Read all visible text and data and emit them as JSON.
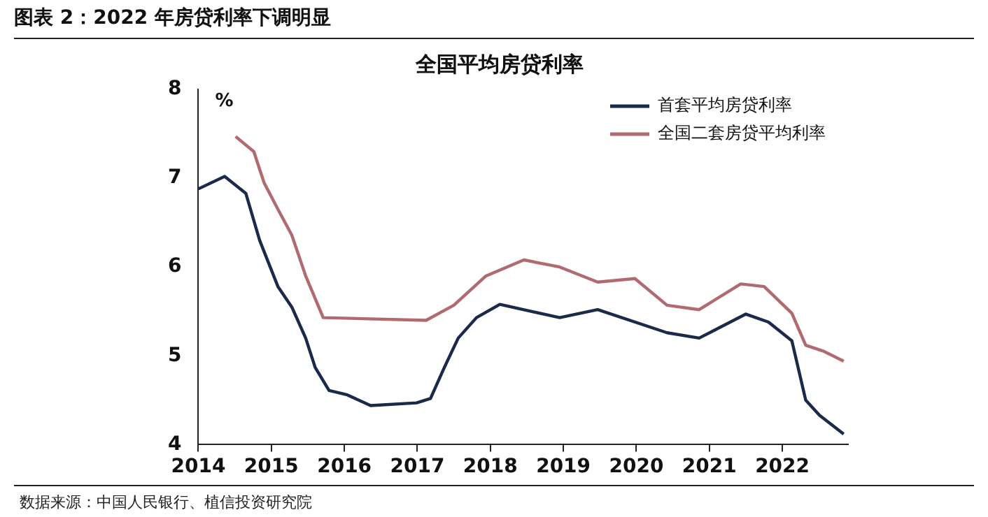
{
  "chart_data": {
    "type": "line",
    "title": "图表 2：2022 年房贷利率下调明显",
    "subtitle": "全国平均房贷利率",
    "ylabel": "%",
    "annotations": [
      "数据来源：中国人民银行、植信投资研究院"
    ],
    "xlim": [
      2014,
      2022.9
    ],
    "xticks": [
      2014,
      2015,
      2016,
      2017,
      2018,
      2019,
      2020,
      2021,
      2022
    ],
    "ylim": [
      4,
      8
    ],
    "yticks": [
      4,
      5,
      6,
      7,
      8
    ],
    "grid": false,
    "legend": "top right",
    "marker": "none",
    "line_style": "solid",
    "series": [
      {
        "name": "首套平均房贷利率",
        "color": "#1b2a4a",
        "x": [
          2014.0,
          2014.36,
          2014.65,
          2014.84,
          2015.09,
          2015.28,
          2015.47,
          2015.6,
          2015.79,
          2016.04,
          2016.36,
          2016.99,
          2017.18,
          2017.37,
          2017.56,
          2017.81,
          2018.13,
          2018.95,
          2019.47,
          2020.42,
          2020.86,
          2021.5,
          2021.81,
          2022.13,
          2022.32,
          2022.51,
          2022.84
        ],
        "values": [
          6.88,
          7.02,
          6.83,
          6.3,
          5.78,
          5.55,
          5.2,
          4.87,
          4.61,
          4.56,
          4.44,
          4.47,
          4.52,
          4.87,
          5.2,
          5.43,
          5.58,
          5.43,
          5.52,
          5.26,
          5.2,
          5.47,
          5.38,
          5.17,
          4.5,
          4.33,
          4.12
        ]
      },
      {
        "name": "全国二套房贷平均利率",
        "color": "#b06a70",
        "x": [
          2014.51,
          2014.76,
          2014.9,
          2015.09,
          2015.28,
          2015.47,
          2015.71,
          2017.12,
          2017.5,
          2017.94,
          2018.46,
          2018.95,
          2019.47,
          2019.98,
          2020.42,
          2020.86,
          2021.43,
          2021.75,
          2022.13,
          2022.32,
          2022.57,
          2022.84
        ],
        "values": [
          7.47,
          7.3,
          6.95,
          6.65,
          6.36,
          5.9,
          5.43,
          5.4,
          5.57,
          5.9,
          6.08,
          6.0,
          5.83,
          5.87,
          5.57,
          5.52,
          5.81,
          5.78,
          5.48,
          5.12,
          5.05,
          4.94
        ]
      }
    ]
  }
}
